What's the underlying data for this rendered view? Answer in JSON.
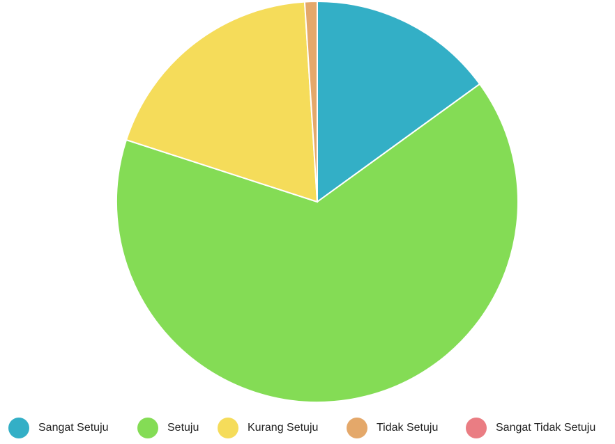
{
  "chart_data": {
    "type": "pie",
    "categories": [
      "Sangat Setuju",
      "Setuju",
      "Kurang Setuju",
      "Tidak Setuju",
      "Sangat Tidak Setuju"
    ],
    "values": [
      15,
      65,
      19,
      1,
      0
    ],
    "colors": [
      "#33afc6",
      "#84dc55",
      "#f5dc5a",
      "#e4a86a",
      "#ea7d83"
    ]
  }
}
